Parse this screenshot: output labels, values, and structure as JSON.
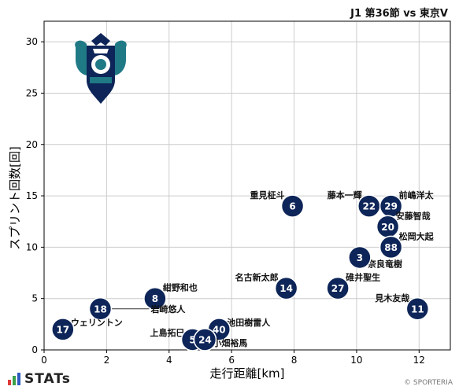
{
  "header": {
    "match_title": "J1 第36節 vs 東京V"
  },
  "footer": {
    "brand": "STATs",
    "copyright": "© SPORTERIA"
  },
  "colors": {
    "marker": "#0d2558",
    "marker_text": "#ffffff",
    "grid": "#cccccc",
    "axis": "#000000"
  },
  "chart_data": {
    "type": "scatter",
    "xlabel": "走行距離[km]",
    "ylabel": "スプリント回数[回]",
    "xlim": [
      0,
      13
    ],
    "ylim": [
      0,
      32
    ],
    "xticks": [
      0,
      2,
      4,
      6,
      8,
      10,
      12
    ],
    "yticks": [
      0,
      5,
      10,
      15,
      20,
      25,
      30
    ],
    "grid": true,
    "points": [
      {
        "number": "6",
        "name": "重見柾斗",
        "x": 7.95,
        "y": 14
      },
      {
        "number": "22",
        "name": "藤本一輝",
        "x": 10.4,
        "y": 14
      },
      {
        "number": "29",
        "name": "前嶋洋太",
        "x": 11.1,
        "y": 14
      },
      {
        "number": "20",
        "name": "安藤智哉",
        "x": 11.0,
        "y": 12
      },
      {
        "number": "88",
        "name": "松岡大起",
        "x": 11.1,
        "y": 10
      },
      {
        "number": "3",
        "name": "奈良竜樹",
        "x": 10.1,
        "y": 9
      },
      {
        "number": "27",
        "name": "碓井聖生",
        "x": 9.4,
        "y": 6
      },
      {
        "number": "14",
        "name": "名古新太郎",
        "x": 7.75,
        "y": 6
      },
      {
        "number": "11",
        "name": "見木友哉",
        "x": 11.95,
        "y": 4
      },
      {
        "number": "8",
        "name": "紺野和也",
        "x": 3.55,
        "y": 5
      },
      {
        "number": "18",
        "name": "岩崎悠人",
        "x": 1.8,
        "y": 4
      },
      {
        "number": "17",
        "name": "ウェリントン",
        "x": 0.6,
        "y": 2
      },
      {
        "number": "40",
        "name": "池田樹雷人",
        "x": 5.6,
        "y": 2
      },
      {
        "number": "5",
        "name": "上島拓巳",
        "x": 4.75,
        "y": 1
      },
      {
        "number": "24",
        "name": "小畑裕馬",
        "x": 5.15,
        "y": 1
      }
    ]
  }
}
